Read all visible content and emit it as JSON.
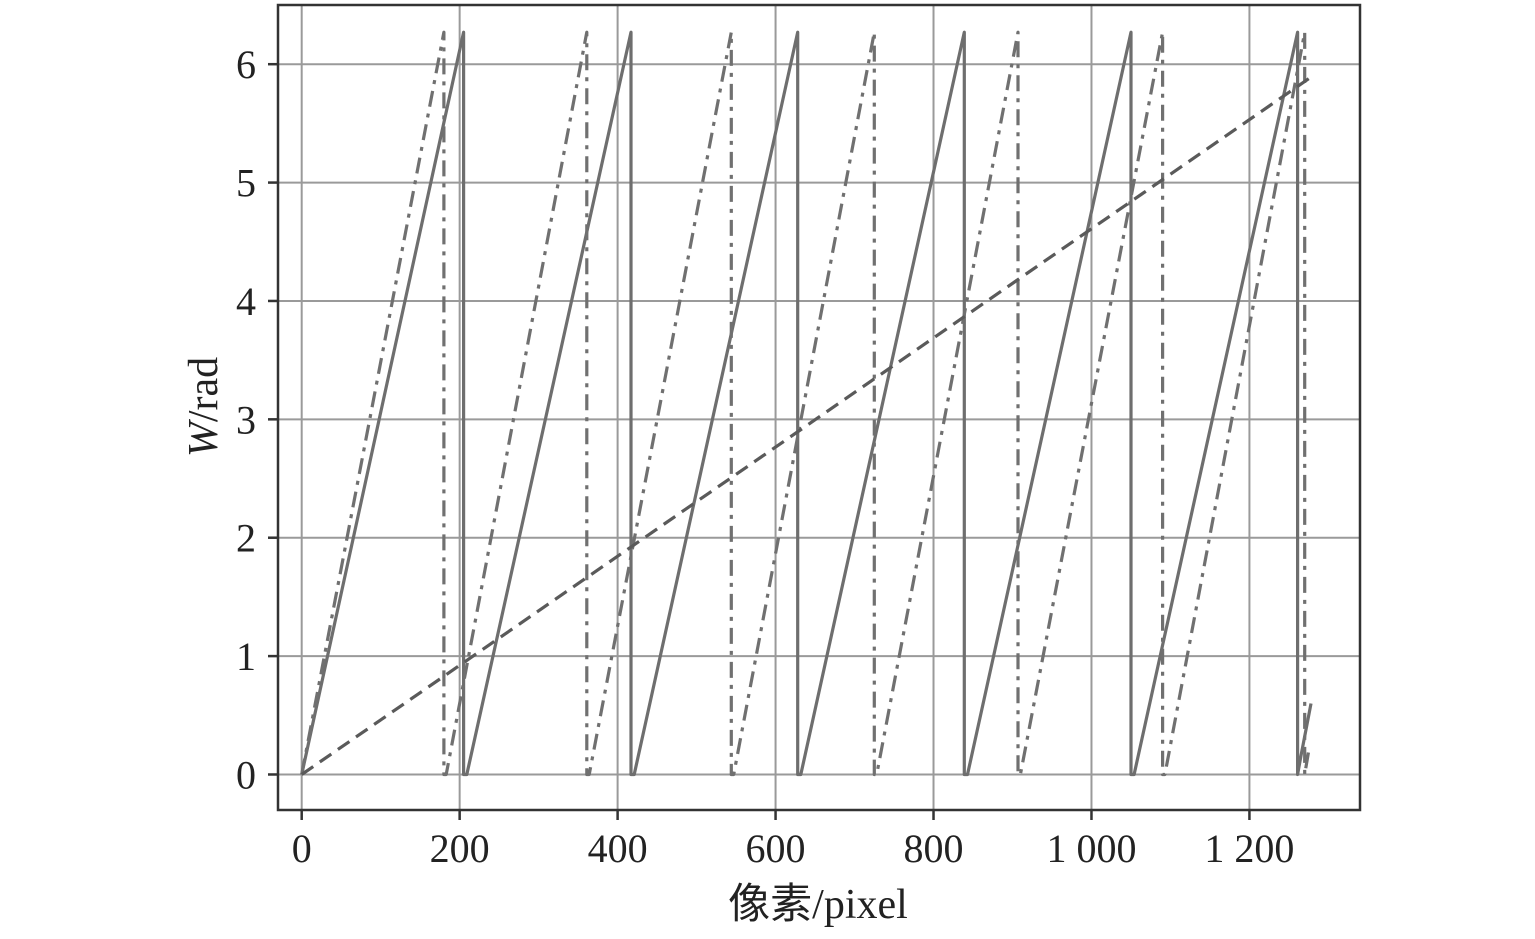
{
  "chart_data": {
    "type": "line",
    "xlabel": "像素/pixel",
    "ylabel_italic": "W",
    "ylabel_rest": "/rad",
    "xlim": [
      -30,
      1340
    ],
    "ylim": [
      -0.3,
      6.5
    ],
    "x_ticks": [
      0,
      200,
      400,
      600,
      800,
      1000,
      1200
    ],
    "x_tick_labels": [
      "0",
      "200",
      "400",
      "600",
      "800",
      "1 000",
      "1 200"
    ],
    "y_ticks": [
      0,
      1,
      2,
      3,
      4,
      5,
      6
    ],
    "y_tick_labels": [
      "0",
      "1",
      "2",
      "3",
      "4",
      "5",
      "6"
    ],
    "grid": true,
    "series": [
      {
        "style": "solid",
        "color": "#6e6e6e",
        "x": [
          0,
          205,
          205,
          209,
          417,
          417,
          421,
          628,
          628,
          632,
          839,
          839,
          843,
          1050,
          1050,
          1054,
          1261,
          1261,
          1265,
          1278
        ],
        "y": [
          0,
          6.27,
          0,
          0,
          6.27,
          0,
          0,
          6.27,
          0,
          0,
          6.27,
          0,
          0,
          6.27,
          0,
          0,
          6.27,
          0,
          0.15,
          0.6
        ]
      },
      {
        "style": "dashdot",
        "color": "#707070",
        "x": [
          0,
          180,
          180,
          183,
          361,
          361,
          364,
          544,
          544,
          547,
          725,
          725,
          728,
          907,
          907,
          910,
          1090,
          1090,
          1093,
          1270,
          1270,
          1275
        ],
        "y": [
          0,
          6.27,
          0,
          0,
          6.27,
          0,
          0,
          6.27,
          0,
          0,
          6.27,
          0,
          0,
          6.27,
          0,
          0,
          6.27,
          0,
          0,
          6.27,
          0,
          0.2
        ]
      },
      {
        "style": "dashed",
        "color": "#5a5a5a",
        "x": [
          0,
          1280
        ],
        "y": [
          0,
          5.9
        ]
      }
    ]
  }
}
